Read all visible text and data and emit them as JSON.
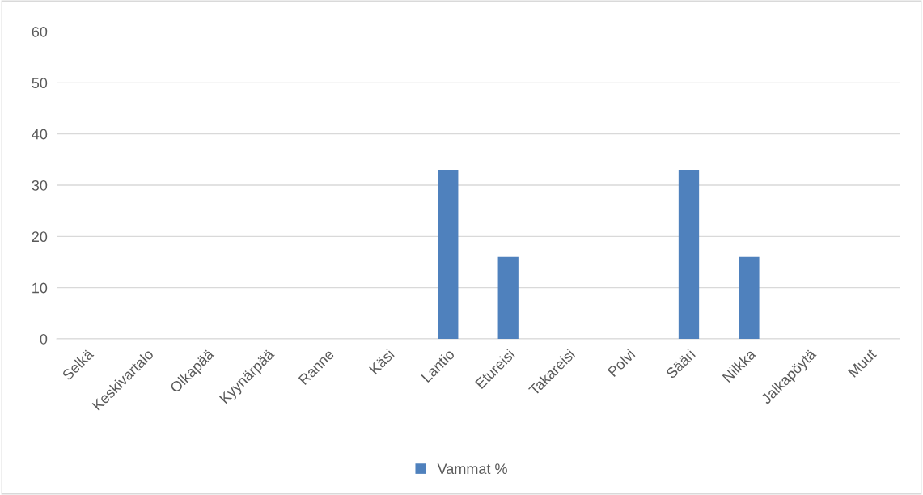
{
  "chart_data": {
    "type": "bar",
    "categories": [
      "Selkä",
      "Keskivartalo",
      "Olkapää",
      "Kyynärpää",
      "Ranne",
      "Käsi",
      "Lantio",
      "Etureisi",
      "Takareisi",
      "Polvi",
      "Sääri",
      "Nilkka",
      "Jalkapöytä",
      "Muut"
    ],
    "series": [
      {
        "name": "Vammat %",
        "color": "#4f81bd",
        "values": [
          0,
          0,
          0,
          0,
          0,
          0,
          33,
          16,
          0,
          0,
          33,
          16,
          0,
          0
        ]
      }
    ],
    "ylim": [
      0,
      60
    ],
    "yticks": [
      0,
      10,
      20,
      30,
      40,
      50,
      60
    ],
    "grid": "y",
    "legend": "bottom"
  }
}
